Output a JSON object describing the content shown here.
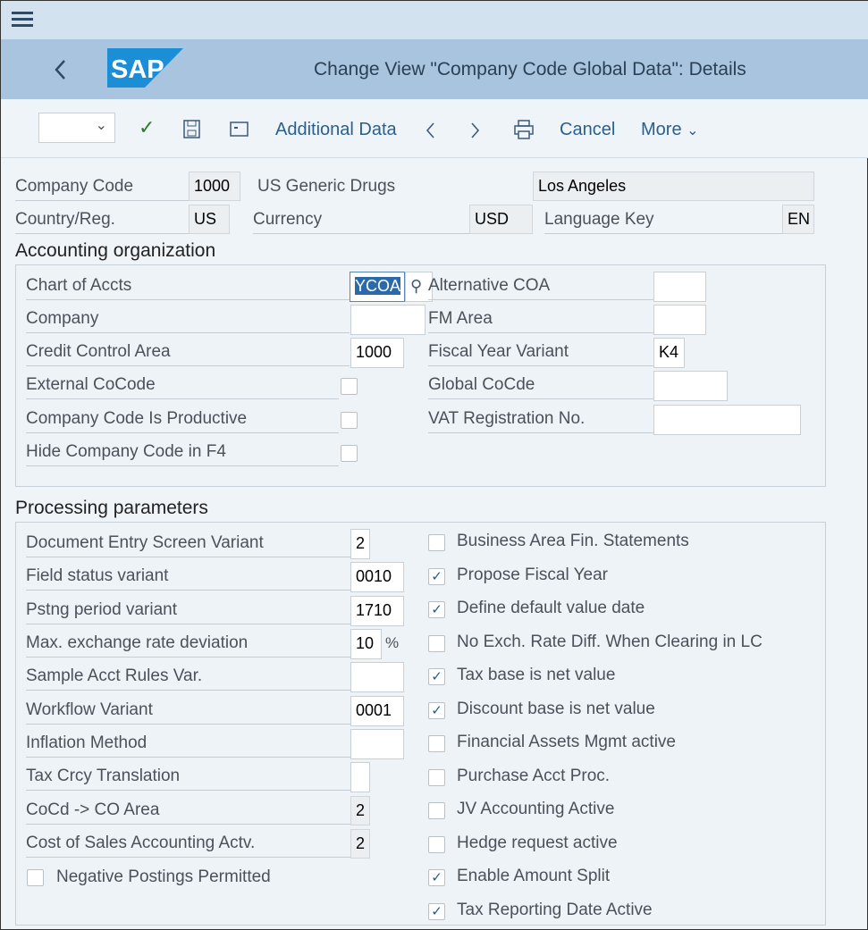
{
  "window": {
    "menu_icon": "hamburger-icon",
    "back_icon": "chevron-left-icon",
    "logo": "SAP",
    "title": "Change View \"Company Code Global Data\": Details"
  },
  "toolbar": {
    "dropdown_value": "",
    "check_icon": "checkmark-icon",
    "save_icon": "save-icon",
    "display_icon": "display-icon",
    "additional_data": "Additional Data",
    "prev_icon": "chevron-left-icon",
    "next_icon": "chevron-right-icon",
    "print_icon": "print-icon",
    "cancel": "Cancel",
    "more": "More"
  },
  "header": {
    "company_code_label": "Company Code",
    "company_code": "1000",
    "company_name": "US Generic Drugs",
    "city": "Los Angeles",
    "country_label": "Country/Reg.",
    "country": "US",
    "currency_label": "Currency",
    "currency": "USD",
    "language_label": "Language Key",
    "language": "EN"
  },
  "accounting": {
    "title": "Accounting organization",
    "left": [
      {
        "label": "Chart of Accts",
        "value": "YCOA",
        "type": "input"
      },
      {
        "label": "Company",
        "value": "",
        "type": "input"
      },
      {
        "label": "Credit Control Area",
        "value": "1000",
        "type": "input"
      },
      {
        "label": "External CoCode",
        "checked": false,
        "type": "checkbox"
      },
      {
        "label": "Company Code Is Productive",
        "checked": false,
        "type": "checkbox"
      },
      {
        "label": "Hide Company Code in F4",
        "checked": false,
        "type": "checkbox"
      }
    ],
    "right": [
      {
        "label": "Alternative COA",
        "value": ""
      },
      {
        "label": "FM Area",
        "value": ""
      },
      {
        "label": "Fiscal Year Variant",
        "value": "K4"
      },
      {
        "label": "Global CoCde",
        "value": ""
      },
      {
        "label": "VAT Registration No.",
        "value": ""
      }
    ]
  },
  "processing": {
    "title": "Processing parameters",
    "left": [
      {
        "label": "Document Entry Screen Variant",
        "value": "2"
      },
      {
        "label": "Field status variant",
        "value": "0010"
      },
      {
        "label": "Pstng period variant",
        "value": "1710"
      },
      {
        "label": "Max. exchange rate deviation",
        "value": "10",
        "unit": "%"
      },
      {
        "label": "Sample Acct Rules Var.",
        "value": ""
      },
      {
        "label": "Workflow Variant",
        "value": "0001"
      },
      {
        "label": "Inflation Method",
        "value": ""
      },
      {
        "label": "Tax Crcy Translation",
        "value": ""
      },
      {
        "label": "CoCd -> CO Area",
        "value": "2"
      },
      {
        "label": "Cost of Sales Accounting Actv.",
        "value": "2"
      }
    ],
    "negative_postings": {
      "label": "Negative Postings Permitted",
      "checked": false
    },
    "right": [
      {
        "label": "Business Area Fin. Statements",
        "checked": false
      },
      {
        "label": "Propose Fiscal Year",
        "checked": true
      },
      {
        "label": "Define default value date",
        "checked": true
      },
      {
        "label": "No Exch. Rate Diff. When Clearing in LC",
        "checked": false
      },
      {
        "label": "Tax base is net value",
        "checked": true
      },
      {
        "label": "Discount base is net value",
        "checked": true
      },
      {
        "label": "Financial Assets Mgmt active",
        "checked": false
      },
      {
        "label": "Purchase Acct Proc.",
        "checked": false
      },
      {
        "label": "JV Accounting Active",
        "checked": false
      },
      {
        "label": "Hedge request active",
        "checked": false
      },
      {
        "label": "Enable Amount Split",
        "checked": true
      },
      {
        "label": "Tax Reporting Date Active",
        "checked": true
      }
    ]
  },
  "colors": {
    "header_bg": "#a8c4de",
    "logo_blue": "#1b8ed6",
    "link": "#2a5f8e",
    "selection": "#2a6aa8"
  }
}
